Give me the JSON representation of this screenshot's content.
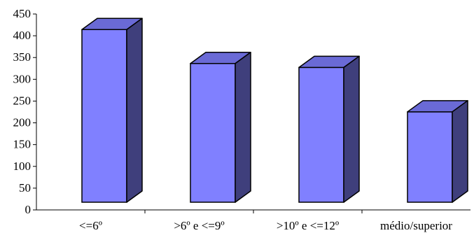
{
  "chart_data": {
    "type": "bar",
    "style": "3d-column",
    "categories": [
      "<=6º",
      ">6º e <=9º",
      ">10º e <=12º",
      "médio/superior"
    ],
    "values": [
      440,
      362,
      353,
      251
    ],
    "ylim": [
      0,
      450
    ],
    "yticks": [
      0,
      50,
      100,
      150,
      200,
      250,
      300,
      350,
      400,
      450
    ],
    "title": "",
    "xlabel": "",
    "ylabel": "",
    "grid": false,
    "legend": "none",
    "colors": {
      "front": "#8080ff",
      "top": "#6a6ad6",
      "side": "#3f3f7c",
      "outline": "#000000",
      "axis": "#000000"
    }
  }
}
